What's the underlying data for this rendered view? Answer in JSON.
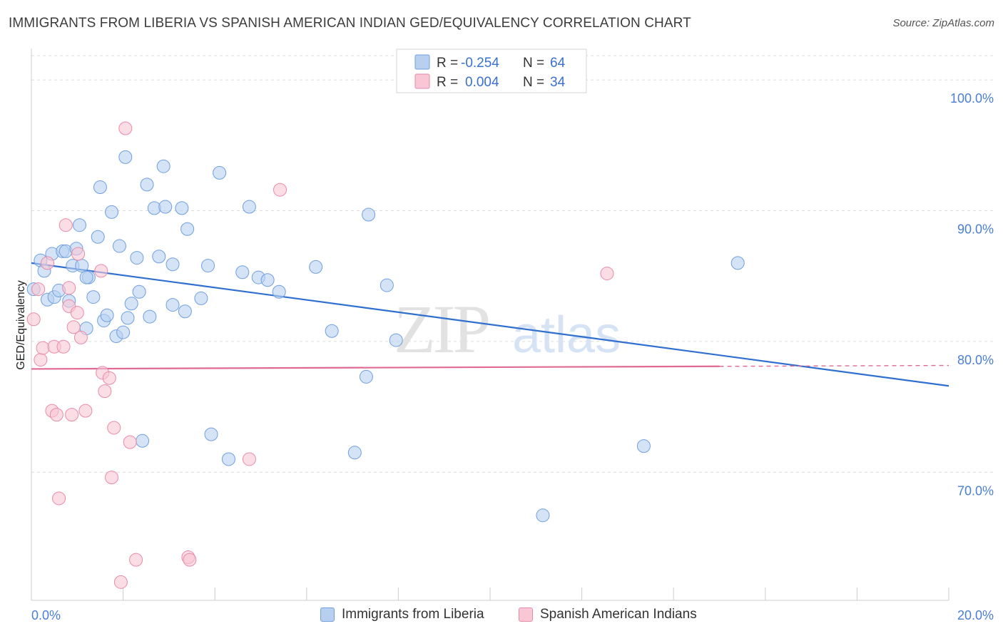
{
  "title": "IMMIGRANTS FROM LIBERIA VS SPANISH AMERICAN INDIAN GED/EQUIVALENCY CORRELATION CHART",
  "source": "Source: ZipAtlas.com",
  "watermark": {
    "zip": "ZIP",
    "atlas": "atlas"
  },
  "colors": {
    "blue_fill": "#b8d0f0",
    "blue_stroke": "#6f9fe0",
    "blue_line": "#2f6fd0",
    "pink_fill": "#f8c6d4",
    "pink_stroke": "#e98aa8",
    "pink_line": "#e06a94",
    "tick_text": "#4a7fd4",
    "grid": "#dcdcdc"
  },
  "legend": {
    "rows": [
      {
        "r_label": "R =",
        "r_value": "-0.254",
        "n_label": "N =",
        "n_value": "64",
        "color": "blue"
      },
      {
        "r_label": "R =",
        "r_value": "0.004",
        "n_label": "N =",
        "n_value": "34",
        "color": "pink"
      }
    ]
  },
  "bottom_legend": {
    "items": [
      {
        "label": "Immigrants from Liberia",
        "color": "blue"
      },
      {
        "label": "Spanish American Indians",
        "color": "pink"
      }
    ]
  },
  "chart_data": {
    "type": "scatter",
    "title": "IMMIGRANTS FROM LIBERIA VS SPANISH AMERICAN INDIAN GED/EQUIVALENCY CORRELATION CHART",
    "xlabel": "",
    "ylabel": "GED/Equivalency",
    "xlim": [
      0,
      20
    ],
    "ylim": [
      60.2,
      102.3
    ],
    "x_tick_labels": [
      "0.0%",
      "20.0%"
    ],
    "y_ticks": [
      70,
      80,
      90,
      100
    ],
    "y_tick_labels": [
      "70.0%",
      "80.0%",
      "90.0%",
      "100.0%"
    ],
    "grid": true,
    "legend_position": "top-center",
    "series": [
      {
        "name": "Immigrants from Liberia",
        "color": "blue",
        "trend": {
          "x": [
            0,
            20
          ],
          "y": [
            86.0,
            76.6
          ],
          "dashed_from": null
        },
        "points": [
          [
            0.05,
            84.0
          ],
          [
            0.2,
            86.2
          ],
          [
            0.28,
            85.4
          ],
          [
            0.35,
            83.2
          ],
          [
            0.45,
            86.7
          ],
          [
            0.5,
            83.4
          ],
          [
            0.6,
            83.9
          ],
          [
            0.68,
            86.9
          ],
          [
            0.75,
            86.9
          ],
          [
            0.82,
            83.1
          ],
          [
            0.9,
            85.8
          ],
          [
            0.98,
            87.1
          ],
          [
            1.05,
            88.9
          ],
          [
            1.1,
            85.8
          ],
          [
            1.2,
            81.0
          ],
          [
            1.25,
            84.9
          ],
          [
            1.35,
            83.4
          ],
          [
            1.45,
            88.0
          ],
          [
            1.5,
            91.8
          ],
          [
            1.58,
            81.6
          ],
          [
            1.65,
            82.0
          ],
          [
            1.75,
            89.9
          ],
          [
            1.85,
            80.4
          ],
          [
            1.92,
            87.3
          ],
          [
            2.0,
            80.7
          ],
          [
            2.05,
            94.1
          ],
          [
            2.1,
            81.8
          ],
          [
            2.18,
            82.9
          ],
          [
            2.3,
            86.4
          ],
          [
            2.35,
            83.8
          ],
          [
            2.42,
            72.4
          ],
          [
            2.52,
            92.0
          ],
          [
            2.58,
            81.9
          ],
          [
            2.68,
            90.2
          ],
          [
            2.78,
            86.5
          ],
          [
            2.88,
            93.4
          ],
          [
            2.92,
            90.3
          ],
          [
            3.08,
            85.9
          ],
          [
            3.08,
            82.8
          ],
          [
            3.28,
            90.2
          ],
          [
            3.35,
            82.3
          ],
          [
            3.4,
            88.6
          ],
          [
            3.7,
            83.3
          ],
          [
            3.85,
            85.8
          ],
          [
            3.92,
            72.9
          ],
          [
            4.1,
            92.9
          ],
          [
            4.3,
            71.0
          ],
          [
            4.6,
            85.3
          ],
          [
            4.75,
            90.3
          ],
          [
            4.95,
            84.9
          ],
          [
            5.15,
            84.7
          ],
          [
            5.4,
            83.8
          ],
          [
            6.2,
            85.7
          ],
          [
            6.55,
            80.8
          ],
          [
            7.05,
            71.5
          ],
          [
            7.3,
            77.3
          ],
          [
            7.35,
            89.7
          ],
          [
            7.75,
            84.3
          ],
          [
            7.95,
            80.1
          ],
          [
            11.15,
            66.7
          ],
          [
            13.35,
            72.0
          ],
          [
            15.4,
            86.0
          ],
          [
            9.5,
            100.8
          ],
          [
            1.2,
            84.9
          ]
        ]
      },
      {
        "name": "Spanish American Indians",
        "color": "pink",
        "trend": {
          "x": [
            0,
            15
          ],
          "y": [
            77.9,
            78.1
          ],
          "dashed_from": 15
        },
        "points": [
          [
            0.05,
            81.7
          ],
          [
            0.15,
            84.0
          ],
          [
            0.2,
            78.6
          ],
          [
            0.25,
            79.5
          ],
          [
            0.35,
            86.0
          ],
          [
            0.45,
            74.7
          ],
          [
            0.5,
            79.6
          ],
          [
            0.55,
            74.4
          ],
          [
            0.6,
            68.0
          ],
          [
            0.7,
            79.6
          ],
          [
            0.75,
            88.9
          ],
          [
            0.82,
            84.1
          ],
          [
            0.82,
            82.7
          ],
          [
            0.88,
            74.4
          ],
          [
            0.92,
            81.1
          ],
          [
            1.0,
            82.2
          ],
          [
            1.02,
            86.7
          ],
          [
            1.08,
            80.3
          ],
          [
            1.18,
            74.7
          ],
          [
            1.52,
            85.4
          ],
          [
            1.55,
            77.6
          ],
          [
            1.6,
            76.2
          ],
          [
            1.7,
            77.2
          ],
          [
            1.75,
            69.6
          ],
          [
            1.8,
            73.4
          ],
          [
            1.95,
            61.6
          ],
          [
            2.05,
            96.3
          ],
          [
            2.15,
            72.3
          ],
          [
            2.28,
            63.3
          ],
          [
            3.42,
            63.5
          ],
          [
            3.45,
            63.3
          ],
          [
            4.75,
            71.0
          ],
          [
            5.42,
            91.6
          ],
          [
            12.55,
            85.2
          ]
        ]
      }
    ]
  }
}
